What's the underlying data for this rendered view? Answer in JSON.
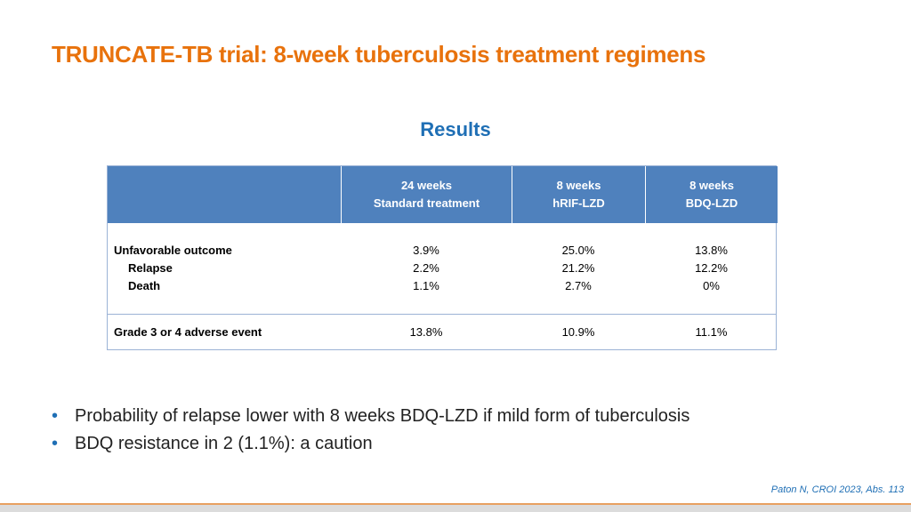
{
  "header": {
    "title": "TRUNCATE-TB trial: 8-week tuberculosis treatment regimens"
  },
  "subtitle": "Results",
  "table": {
    "columns": [
      {
        "duration": "24 weeks",
        "regimen": "Standard treatment"
      },
      {
        "duration": "8 weeks",
        "regimen": "hRIF-LZD"
      },
      {
        "duration": "8 weeks",
        "regimen": "BDQ-LZD"
      }
    ],
    "rows": [
      {
        "labels": [
          "Unfavorable outcome",
          "Relapse",
          "Death"
        ],
        "cells": [
          [
            "3.9%",
            "2.2%",
            "1.1%"
          ],
          [
            "25.0%",
            "21.2%",
            "2.7%"
          ],
          [
            "13.8%",
            "12.2%",
            "0%"
          ]
        ]
      },
      {
        "labels": [
          "Grade 3 or 4 adverse event"
        ],
        "cells": [
          [
            "13.8%"
          ],
          [
            "10.9%"
          ],
          [
            "11.1%"
          ]
        ]
      }
    ]
  },
  "bullets": [
    "Probability of relapse lower with 8 weeks BDQ-LZD if mild form of tuberculosis",
    "BDQ resistance in 2 (1.1%): a caution"
  ],
  "citation": "Paton N, CROI 2023, Abs. 113"
}
